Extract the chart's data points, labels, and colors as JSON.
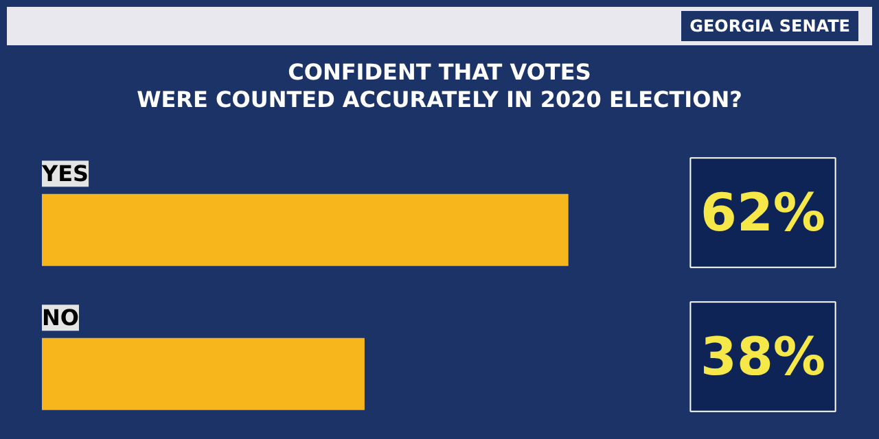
{
  "chart_data": {
    "type": "bar",
    "orientation": "horizontal",
    "title": "CONFIDENT THAT VOTES\nWERE COUNTED ACCURATELY IN 2020 ELECTION?",
    "subtitle": "GEORGIA SENATE",
    "categories": [
      "YES",
      "NO"
    ],
    "values": [
      62,
      38
    ],
    "value_labels": [
      "62%",
      "38%"
    ],
    "color": "#f7b71c",
    "tick_labels": false
  }
}
